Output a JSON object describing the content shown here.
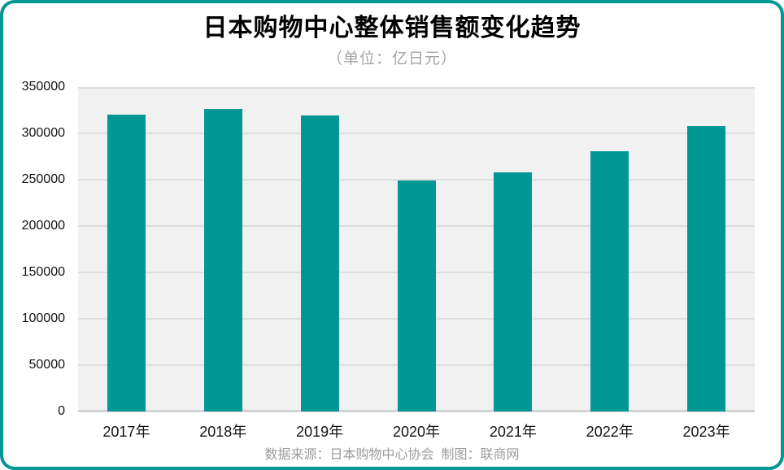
{
  "header": {
    "title": "日本购物中心整体销售额变化趋势",
    "subtitle": "（单位：亿日元）"
  },
  "footer": {
    "caption": "数据来源：日本购物中心协会  制图：联商网"
  },
  "chart_data": {
    "type": "bar",
    "title": "日本购物中心整体销售额变化趋势",
    "subtitle": "（单位：亿日元）",
    "unit": "亿日元",
    "categories": [
      "2017年",
      "2018年",
      "2019年",
      "2020年",
      "2021年",
      "2022年",
      "2023年"
    ],
    "values": [
      320000,
      326000,
      319000,
      249000,
      257500,
      281000,
      308000
    ],
    "ylim": [
      0,
      350000
    ],
    "yticks": [
      0,
      50000,
      100000,
      150000,
      200000,
      250000,
      300000,
      350000
    ],
    "xlabel": "",
    "ylabel": "",
    "grid": true,
    "legend_position": "none",
    "bar_color": "#009795",
    "border_color": "#009795",
    "plot_background": "#f1f1f1",
    "gridline_color": "#dedede",
    "source_caption": "数据来源：日本购物中心协会  制图：联商网"
  }
}
